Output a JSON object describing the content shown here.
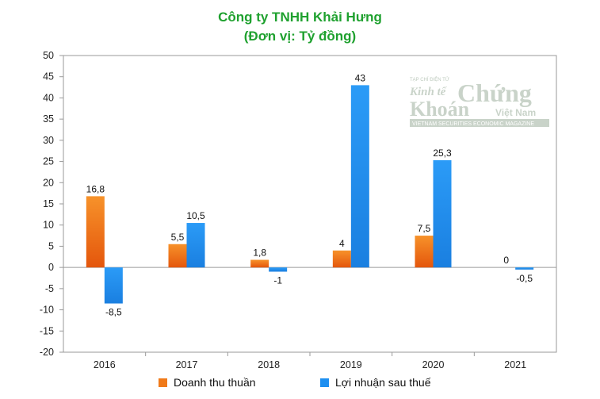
{
  "title_line1": "Công ty TNHH Khải Hưng",
  "title_line2": "(Đơn vị: Tỷ đồng)",
  "watermark": {
    "top": "TẠP CHÍ ĐIỆN TỬ",
    "line1a": "Kinh tế",
    "line1b": "Chứng",
    "line2a": "Khoán",
    "line2b": "Việt Nam",
    "bottom": "VIETNAM SECURITIES ECONOMIC MAGAZINE"
  },
  "chart_data": {
    "type": "bar",
    "categories": [
      "2016",
      "2017",
      "2018",
      "2019",
      "2020",
      "2021"
    ],
    "series": [
      {
        "name": "Doanh thu thuần",
        "values": [
          16.8,
          5.5,
          1.8,
          4,
          7.5,
          0
        ],
        "labels": [
          "16,8",
          "5,5",
          "1,8",
          "4",
          "7,5",
          "0"
        ],
        "color": "#f07a1a"
      },
      {
        "name": "Lợi nhuận sau thuế",
        "values": [
          -8.5,
          10.5,
          -1,
          43,
          25.3,
          -0.5
        ],
        "labels": [
          "-8,5",
          "10,5",
          "-1",
          "43",
          "25,3",
          "-0,5"
        ],
        "color": "#1e8ff0"
      }
    ],
    "ylim": [
      -20,
      50
    ],
    "yticks": [
      50,
      45,
      40,
      35,
      30,
      25,
      20,
      15,
      10,
      5,
      0,
      -5,
      -10,
      -15,
      -20
    ],
    "grid": false,
    "legend_position": "bottom"
  }
}
